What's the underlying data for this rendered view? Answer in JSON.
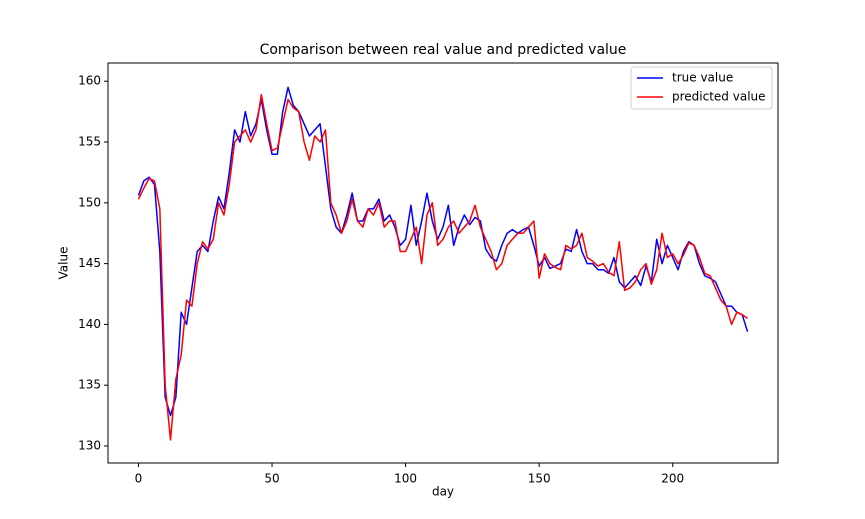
{
  "chart_data": {
    "type": "line",
    "title": "Comparison between real value and predicted value",
    "xlabel": "day",
    "ylabel": "Value",
    "x": [
      0,
      2,
      4,
      6,
      8,
      10,
      12,
      14,
      16,
      18,
      20,
      22,
      24,
      26,
      28,
      30,
      32,
      34,
      36,
      38,
      40,
      42,
      44,
      46,
      48,
      50,
      52,
      54,
      56,
      58,
      60,
      62,
      64,
      66,
      68,
      70,
      72,
      74,
      76,
      78,
      80,
      82,
      84,
      86,
      88,
      90,
      92,
      94,
      96,
      98,
      100,
      102,
      104,
      106,
      108,
      110,
      112,
      114,
      116,
      118,
      120,
      122,
      124,
      126,
      128,
      130,
      132,
      134,
      136,
      138,
      140,
      142,
      144,
      146,
      148,
      150,
      152,
      154,
      156,
      158,
      160,
      162,
      164,
      166,
      168,
      170,
      172,
      174,
      176,
      178,
      180,
      182,
      184,
      186,
      188,
      190,
      192,
      194,
      196,
      198,
      200,
      202,
      204,
      206,
      208,
      210,
      212,
      214,
      216,
      218,
      220,
      222,
      224,
      226,
      228
    ],
    "series": [
      {
        "name": "true value",
        "color": "#0000ff",
        "values": [
          150.6,
          151.8,
          152.1,
          151.5,
          146,
          134,
          132.5,
          134,
          141,
          140,
          143,
          146,
          146.5,
          146,
          148.5,
          150.5,
          149.5,
          152.5,
          156,
          155,
          157.5,
          155.5,
          156.5,
          158.5,
          156,
          154,
          154,
          157.5,
          159.5,
          158,
          157.5,
          156.5,
          155.5,
          156,
          156.5,
          153,
          149.5,
          148,
          147.5,
          149,
          150.8,
          148.5,
          148.5,
          149.5,
          149.5,
          150.3,
          148.5,
          149,
          148,
          146.5,
          147,
          149.8,
          146.5,
          148.5,
          150.8,
          148.5,
          147,
          148,
          149.8,
          146.5,
          148,
          149,
          148.2,
          148.8,
          148.5,
          146.2,
          145.5,
          145.2,
          146.5,
          147.5,
          147.8,
          147.5,
          147.8,
          148,
          146.5,
          144.8,
          145.5,
          144.6,
          144.8,
          145,
          146.2,
          146,
          147.8,
          146,
          145,
          145,
          144.5,
          144.5,
          144.2,
          145.5,
          143.5,
          143,
          143.5,
          144,
          143.2,
          144.8,
          143.5,
          147,
          145,
          146.5,
          145.5,
          144.5,
          146,
          146.8,
          146.5,
          145,
          144,
          143.8,
          143.5,
          142.5,
          141.5,
          141.5,
          141,
          140.8,
          139.4
        ]
      },
      {
        "name": "predicted value",
        "color": "#ff0000",
        "values": [
          150.3,
          151.2,
          152,
          151.8,
          149.5,
          135,
          130.5,
          135.5,
          137.5,
          142,
          141.5,
          145,
          146.8,
          146.2,
          147,
          150,
          149,
          151.5,
          155,
          155.5,
          156,
          155,
          156,
          158.9,
          156.5,
          154.3,
          154.5,
          156.5,
          158.5,
          157.8,
          157.5,
          155,
          153.5,
          155.5,
          155,
          156,
          150,
          149,
          147.5,
          148.5,
          150.3,
          148.5,
          148,
          149.5,
          149,
          150,
          148,
          148.5,
          148.5,
          146,
          146,
          147,
          148,
          145,
          149,
          150,
          146.5,
          147,
          148,
          148.5,
          147.5,
          148,
          148.5,
          149.8,
          148,
          147,
          146,
          144.5,
          145,
          146.5,
          147,
          147.5,
          147.5,
          148,
          148.5,
          143.8,
          145.8,
          145,
          144.7,
          144.5,
          146.5,
          146.2,
          146.5,
          147.5,
          145.5,
          145.2,
          144.8,
          145,
          144.3,
          144,
          146.8,
          142.8,
          143,
          143.5,
          144.5,
          145,
          143.3,
          144.5,
          147.5,
          145.5,
          145.8,
          145,
          145.7,
          146.7,
          146.5,
          145.5,
          144.2,
          144,
          143,
          142,
          141.5,
          140,
          141,
          140.8,
          140.5
        ]
      }
    ],
    "xlim": [
      -11.4,
      239.4
    ],
    "ylim": [
      128.6,
      161.5
    ],
    "xticks": [
      0,
      50,
      100,
      150,
      200
    ],
    "yticks": [
      130,
      135,
      140,
      145,
      150,
      155,
      160
    ],
    "grid": false,
    "legend": "upper right"
  }
}
